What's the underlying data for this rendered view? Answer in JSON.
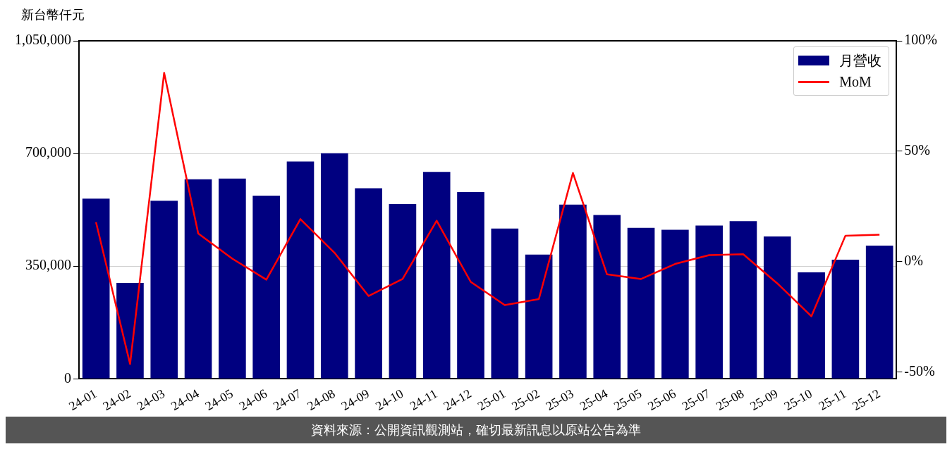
{
  "chart_data": {
    "type": "bar",
    "ylabel": "新台幣仟元",
    "categories": [
      "24-01",
      "24-02",
      "24-03",
      "24-04",
      "24-05",
      "24-06",
      "24-07",
      "24-08",
      "24-09",
      "24-10",
      "24-11",
      "24-12",
      "25-01",
      "25-02",
      "25-03",
      "25-04",
      "25-05",
      "25-06",
      "25-07",
      "25-08",
      "25-09",
      "25-10",
      "25-11",
      "25-12"
    ],
    "series": [
      {
        "name": "月營收",
        "color": "#000080",
        "values": [
          560000,
          298000,
          553000,
          620000,
          622000,
          569000,
          675000,
          701000,
          592000,
          543000,
          643000,
          580000,
          467000,
          386000,
          541000,
          509000,
          469000,
          463000,
          476000,
          490000,
          442000,
          331000,
          370000,
          414000
        ]
      },
      {
        "name": "MoM",
        "type": "line",
        "axis": "y2",
        "color": "#ff0000",
        "values": [
          17.9,
          -46.3,
          85.5,
          12.8,
          1.4,
          -8.1,
          19.3,
          4.1,
          -15.5,
          -7.8,
          18.6,
          -9.1,
          -19.6,
          -16.9,
          40.2,
          -5.7,
          -7.8,
          -1.0,
          3.0,
          3.4,
          -9.8,
          -24.7,
          11.8,
          12.2
        ]
      }
    ],
    "ylim": [
      0,
      1050000
    ],
    "yticks": [
      {
        "value": 0,
        "label": "0"
      },
      {
        "value": 350000,
        "label": "350,000"
      },
      {
        "value": 700000,
        "label": "700,000"
      },
      {
        "value": 1050000,
        "label": "1,050,000"
      }
    ],
    "y2lim": [
      -53,
      100
    ],
    "y2ticks": [
      {
        "value": -50,
        "label": "-50%"
      },
      {
        "value": 0,
        "label": "0%"
      },
      {
        "value": 50,
        "label": "50%"
      },
      {
        "value": 100,
        "label": "100%"
      }
    ],
    "grid": "y",
    "legend": "top right",
    "marker": "none",
    "line_style": "solid",
    "annotations": [
      "資料來源：公開資訊觀測站，確切最新訊息以原站公告為準"
    ]
  }
}
